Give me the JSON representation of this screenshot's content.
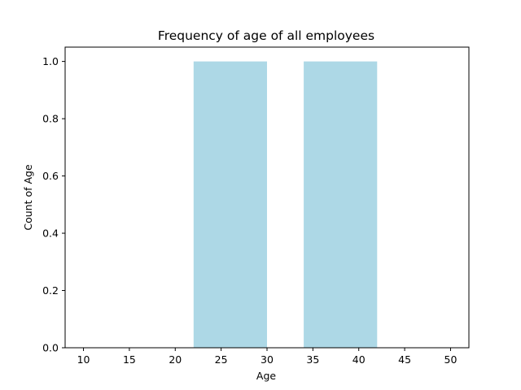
{
  "chart_data": {
    "type": "bar",
    "title": "Frequency of age of all employees",
    "xlabel": "Age",
    "ylabel": "Count of Age",
    "xlim": [
      8,
      52
    ],
    "ylim": [
      0,
      1.05
    ],
    "xticks": [
      10,
      15,
      20,
      25,
      30,
      35,
      40,
      45,
      50
    ],
    "yticks": [
      "0.0",
      "0.2",
      "0.4",
      "0.6",
      "0.8",
      "1.0"
    ],
    "bars": [
      {
        "x_start": 22,
        "x_end": 30,
        "value": 1.0
      },
      {
        "x_start": 34,
        "x_end": 42,
        "value": 1.0
      }
    ],
    "bar_color": "#add8e6",
    "grid": false,
    "legend": "none"
  }
}
